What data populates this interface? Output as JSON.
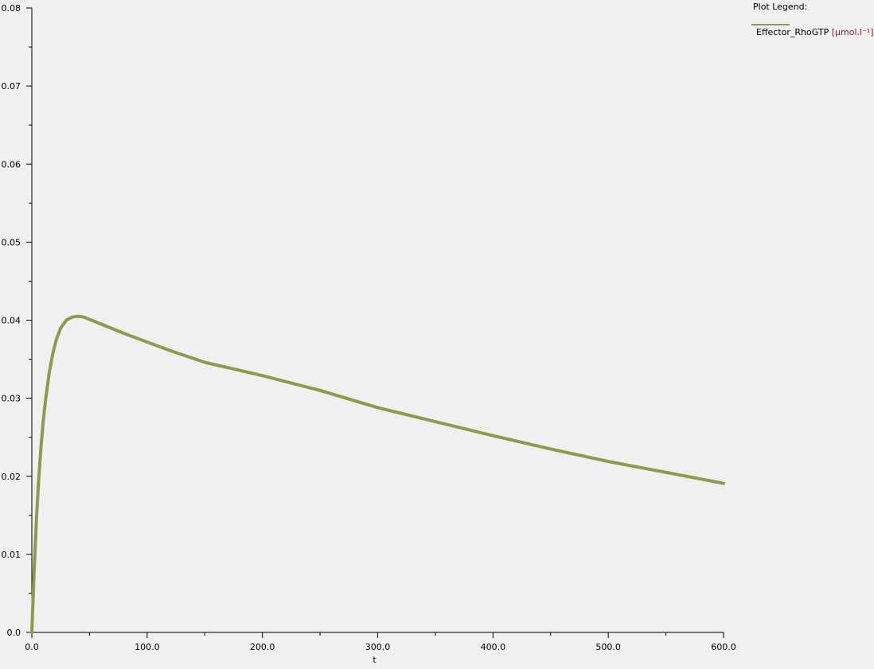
{
  "legend": {
    "title": "Plot Legend:",
    "series_label": "Effector_RhoGTP",
    "series_unit": "[µmol.l⁻¹]"
  },
  "chart_data": {
    "type": "line",
    "title": "",
    "xlabel": "t",
    "ylabel": "",
    "xlim": [
      0,
      600
    ],
    "ylim": [
      0,
      0.08
    ],
    "x_ticks": [
      "0.0",
      "100.0",
      "200.0",
      "300.0",
      "400.0",
      "500.0",
      "600.0"
    ],
    "y_ticks": [
      "0.0",
      "0.01",
      "0.02",
      "0.03",
      "0.04",
      "0.05",
      "0.06",
      "0.07",
      "0.08"
    ],
    "grid": false,
    "legend_position": "top-right",
    "series": [
      {
        "name": "Effector_RhoGTP",
        "unit": "[µmol.l⁻¹]",
        "color": "#8f9a4d",
        "x": [
          0,
          2,
          4,
          6,
          8,
          10,
          12,
          15,
          18,
          21,
          25,
          30,
          35,
          40,
          45,
          50,
          60,
          70,
          80,
          100,
          120,
          150,
          200,
          250,
          300,
          350,
          400,
          450,
          500,
          550,
          600
        ],
        "y": [
          0.0,
          0.008,
          0.0145,
          0.0197,
          0.0239,
          0.0272,
          0.0299,
          0.0332,
          0.0356,
          0.0374,
          0.039,
          0.04,
          0.0404,
          0.0405,
          0.0404,
          0.0401,
          0.0395,
          0.0389,
          0.0383,
          0.0372,
          0.0361,
          0.0346,
          0.0329,
          0.031,
          0.0288,
          0.027,
          0.0252,
          0.0235,
          0.0219,
          0.0205,
          0.0191
        ]
      }
    ]
  }
}
